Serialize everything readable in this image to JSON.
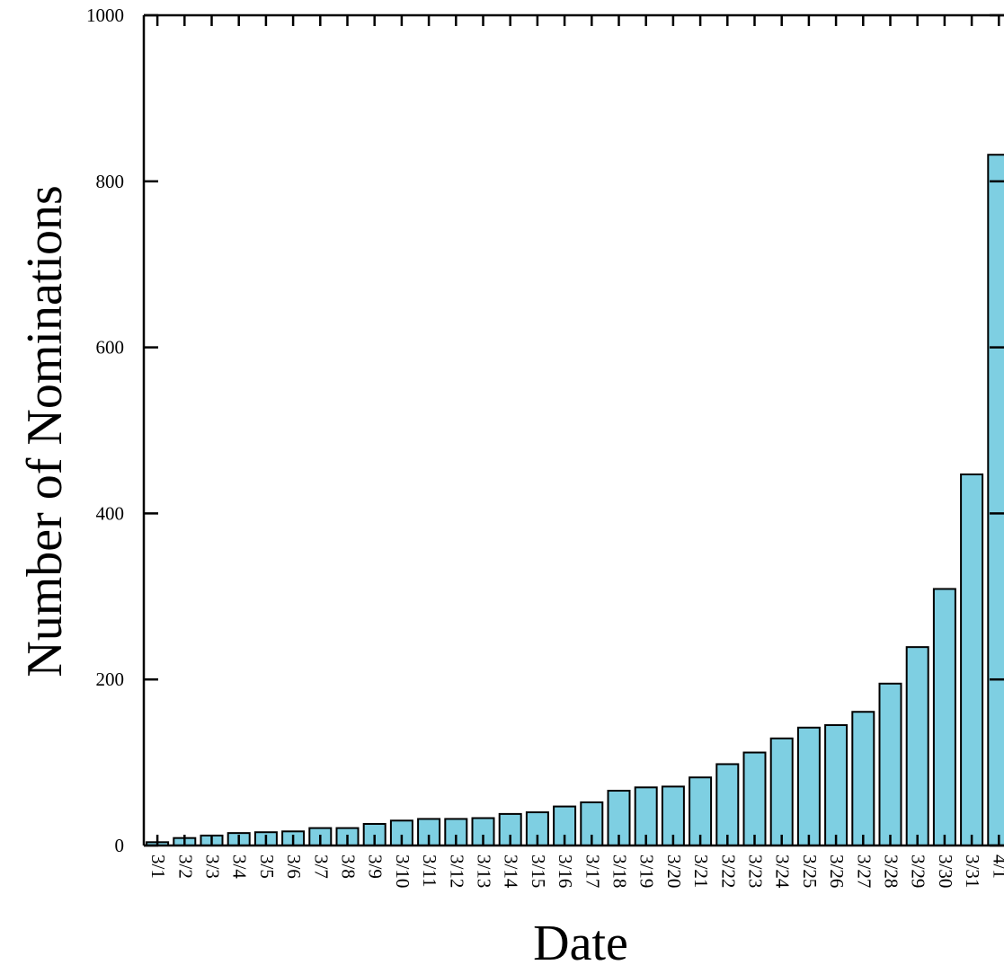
{
  "chart_data": {
    "type": "bar",
    "title": "",
    "xlabel": "Date",
    "ylabel": "Number of Nominations",
    "ylim": [
      0,
      1000
    ],
    "yticks": [
      0,
      200,
      400,
      600,
      800,
      1000
    ],
    "grid": false,
    "legend": "none",
    "bar_color": "#7ecfe2",
    "categories": [
      "3/1",
      "3/2",
      "3/3",
      "3/4",
      "3/5",
      "3/6",
      "3/7",
      "3/8",
      "3/9",
      "3/10",
      "3/11",
      "3/12",
      "3/13",
      "3/14",
      "3/15",
      "3/16",
      "3/17",
      "3/18",
      "3/19",
      "3/20",
      "3/21",
      "3/22",
      "3/23",
      "3/24",
      "3/25",
      "3/26",
      "3/27",
      "3/28",
      "3/29",
      "3/30",
      "3/31",
      "4/1"
    ],
    "values": [
      4,
      9,
      12,
      15,
      16,
      17,
      21,
      21,
      26,
      30,
      32,
      32,
      33,
      38,
      40,
      47,
      52,
      66,
      70,
      71,
      82,
      98,
      112,
      129,
      142,
      145,
      161,
      195,
      239,
      309,
      447,
      832
    ]
  }
}
